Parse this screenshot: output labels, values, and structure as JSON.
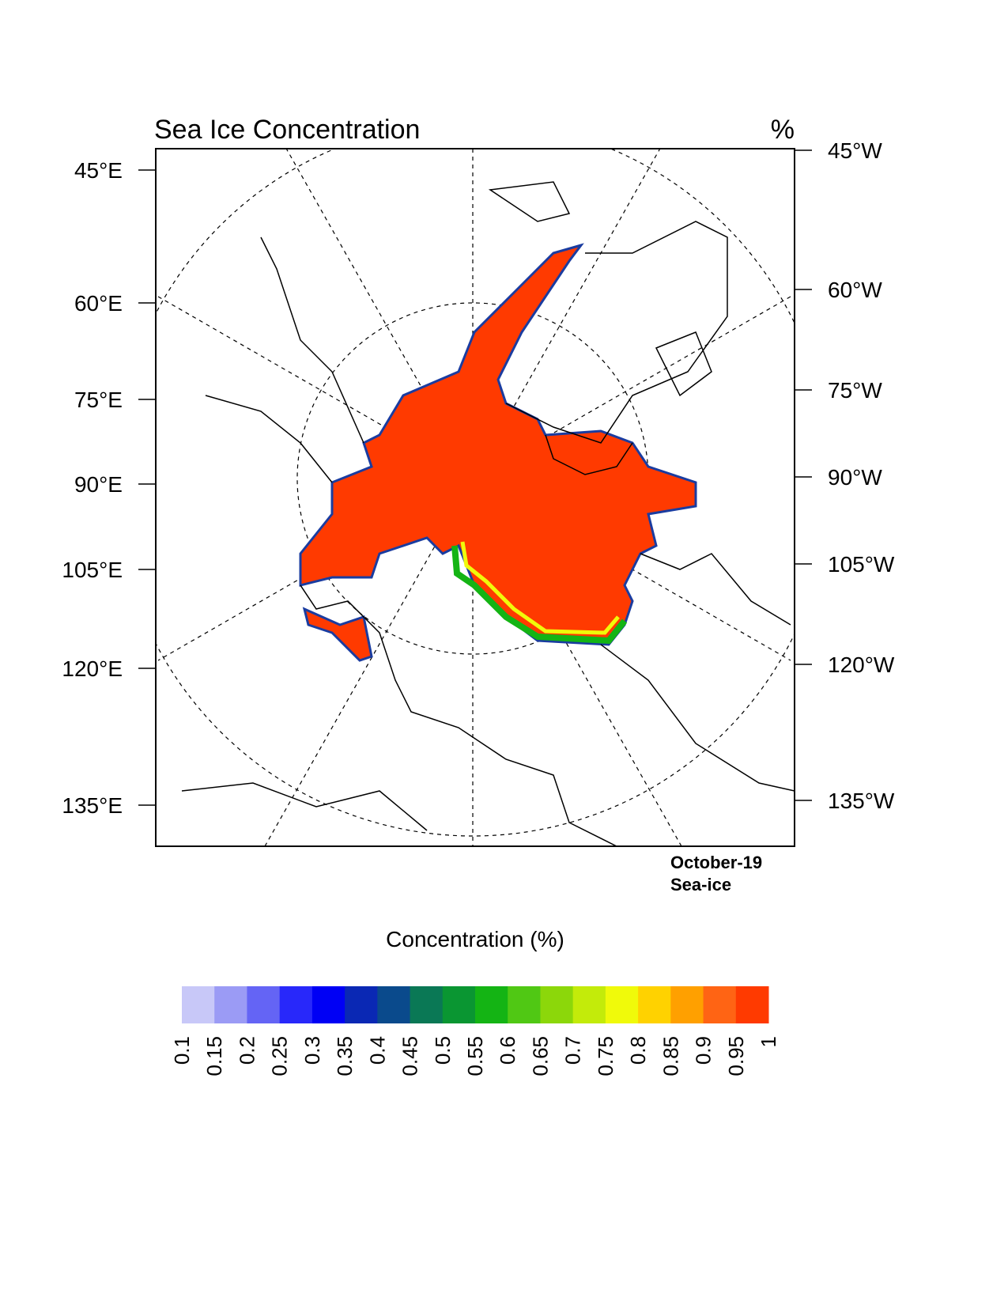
{
  "header": {
    "title": "Sea Ice Concentration",
    "units": "%"
  },
  "map": {
    "left_labels": [
      "45°E",
      "60°E",
      "75°E",
      "90°E",
      "105°E",
      "120°E",
      "135°E"
    ],
    "right_labels": [
      "45°W",
      "60°W",
      "75°W",
      "90°W",
      "105°W",
      "120°W",
      "135°W"
    ],
    "annotation": [
      "October-19",
      "Sea-ice"
    ]
  },
  "colorbar": {
    "title": "Concentration (%)",
    "levels": [
      0.1,
      0.15,
      0.2,
      0.25,
      0.3,
      0.35,
      0.4,
      0.45,
      0.5,
      0.55,
      0.6,
      0.65,
      0.7,
      0.75,
      0.8,
      0.85,
      0.9,
      0.95,
      1
    ],
    "colors": [
      "#c8c8f8",
      "#9b9bf5",
      "#6464f5",
      "#2828fa",
      "#0000f5",
      "#0a28b4",
      "#0a4a8c",
      "#0a7855",
      "#0a9632",
      "#14b414",
      "#50c814",
      "#8cd70a",
      "#c3eb0a",
      "#f0fa0a",
      "#ffd200",
      "#ffa000",
      "#ff6414",
      "#ff3a00"
    ]
  }
}
